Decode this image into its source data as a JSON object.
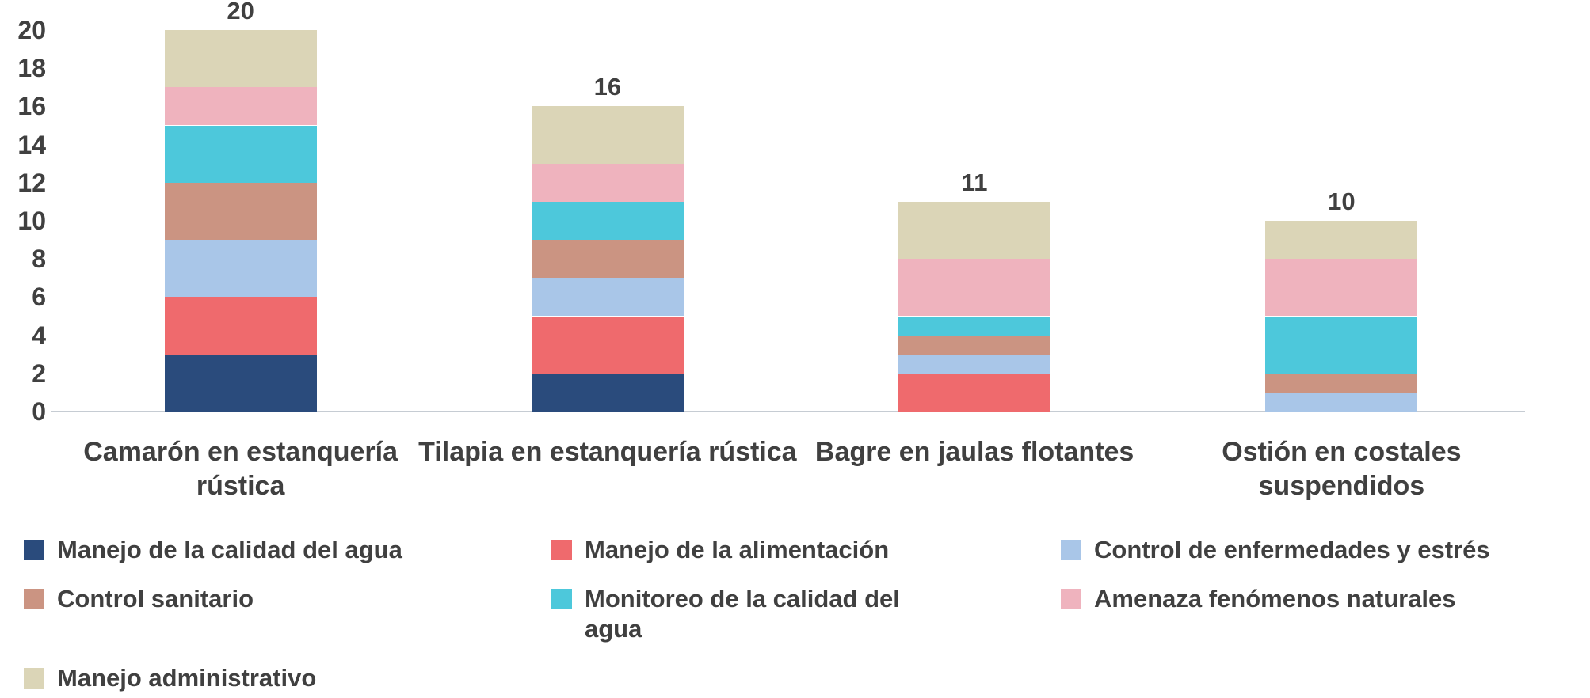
{
  "chart_data": {
    "type": "bar",
    "stacked": true,
    "title": "",
    "xlabel": "",
    "ylabel": "",
    "ylim": [
      0,
      20
    ],
    "yticks": [
      0,
      2,
      4,
      6,
      8,
      10,
      12,
      14,
      16,
      18,
      20
    ],
    "grid": false,
    "legend_position": "bottom",
    "categories": [
      "Camarón en estanquería rústica",
      "Tilapia en estanquería rústica",
      "Bagre en jaulas flotantes",
      "Ostión en costales suspendidos"
    ],
    "series": [
      {
        "name": "Manejo de la calidad del agua",
        "color": "#2a4b7c",
        "values": [
          3,
          2,
          0,
          0
        ]
      },
      {
        "name": "Manejo de la alimentación",
        "color": "#ef6a6d",
        "values": [
          3,
          3,
          2,
          0
        ]
      },
      {
        "name": "Control de enfermedades y estrés",
        "color": "#a9c6e8",
        "values": [
          3,
          2,
          1,
          1
        ]
      },
      {
        "name": "Control sanitario",
        "color": "#cb9482",
        "values": [
          3,
          2,
          1,
          1
        ]
      },
      {
        "name": "Monitoreo de la calidad del agua",
        "color": "#4dc8db",
        "values": [
          3,
          2,
          1,
          3
        ]
      },
      {
        "name": "Amenaza fenómenos naturales",
        "color": "#efb3be",
        "values": [
          2,
          2,
          3,
          3
        ]
      },
      {
        "name": "Manejo administrativo",
        "color": "#dbd5b7",
        "values": [
          3,
          3,
          3,
          2
        ]
      }
    ],
    "totals": [
      20,
      16,
      11,
      10
    ]
  },
  "colors": {
    "text": "#404040",
    "axis_line": "#c6ccd3",
    "background": "#ffffff"
  }
}
